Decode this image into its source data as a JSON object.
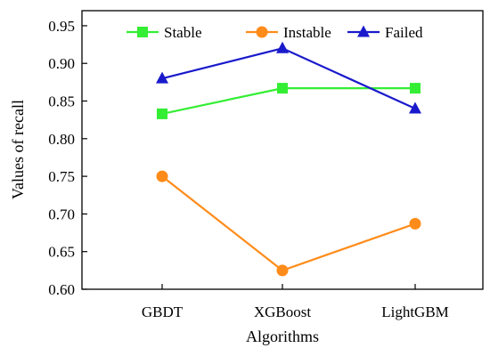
{
  "chart_data": {
    "type": "line",
    "categories": [
      "GBDT",
      "XGBoost",
      "LightGBM"
    ],
    "xlabel": "Algorithms",
    "ylabel": "Values of recall",
    "ylim": [
      0.6,
      0.97
    ],
    "yticks": [
      "0.60",
      "0.65",
      "0.70",
      "0.75",
      "0.80",
      "0.85",
      "0.90",
      "0.95"
    ],
    "grid": false,
    "legend_position": "top",
    "series": [
      {
        "name": "Stable",
        "values": [
          0.833,
          0.867,
          0.867
        ],
        "color": "#33ee33",
        "marker": "square"
      },
      {
        "name": "Instable",
        "values": [
          0.75,
          0.625,
          0.687
        ],
        "color": "#ff8c1a",
        "marker": "circle"
      },
      {
        "name": "Failed",
        "values": [
          0.88,
          0.92,
          0.84
        ],
        "color": "#1a1acc",
        "marker": "triangle"
      }
    ]
  }
}
